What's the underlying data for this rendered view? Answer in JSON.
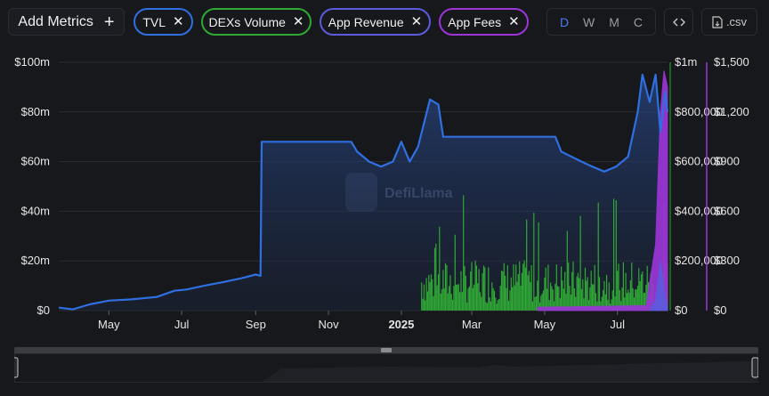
{
  "toolbar": {
    "add_metrics_label": "Add Metrics",
    "add_icon": "plus-icon",
    "pills": [
      {
        "label": "TVL",
        "color": "#2f6fe0"
      },
      {
        "label": "DEXs Volume",
        "color": "#2fa836"
      },
      {
        "label": "App Revenue",
        "color": "#5b5bdc"
      },
      {
        "label": "App Fees",
        "color": "#9b35d6"
      }
    ],
    "periods": [
      "D",
      "W",
      "M",
      "C"
    ],
    "active_period": "D",
    "embed_icon": "code-icon",
    "csv_label": ".csv",
    "csv_icon": "file-icon"
  },
  "watermark": "DefiLlama",
  "chart_data": {
    "type": "area",
    "x_ticks": [
      "May",
      "Jul",
      "Sep",
      "Nov",
      "2025",
      "Mar",
      "May",
      "Jul"
    ],
    "axes": {
      "left": {
        "ticks": [
          "$0",
          "$20m",
          "$40m",
          "$60m",
          "$80m",
          "$100m"
        ],
        "max": 100000000,
        "series": "TVL"
      },
      "right1": {
        "ticks": [
          "$0",
          "$200,000",
          "$400,000",
          "$600,000",
          "$800,000",
          "$1m"
        ],
        "max": 1000000,
        "series": "DEXs Volume"
      },
      "right2": {
        "ticks": [
          "$0",
          "$300",
          "$600",
          "$900",
          "$1,200",
          "$1,500"
        ],
        "max": 1500,
        "series": "App Fees"
      }
    },
    "series": [
      {
        "name": "TVL",
        "type": "area",
        "color": "#2f6fe0",
        "unit": "USD",
        "points": [
          [
            "2024-03-20",
            1200000.0
          ],
          [
            "2024-04-01",
            500000.0
          ],
          [
            "2024-04-15",
            2500000.0
          ],
          [
            "2024-05-01",
            4000000.0
          ],
          [
            "2024-05-20",
            4500000.0
          ],
          [
            "2024-06-10",
            5500000.0
          ],
          [
            "2024-06-25",
            8000000.0
          ],
          [
            "2024-07-05",
            8500000.0
          ],
          [
            "2024-07-20",
            10000000.0
          ],
          [
            "2024-08-05",
            11500000.0
          ],
          [
            "2024-08-20",
            13000000.0
          ],
          [
            "2024-09-01",
            14500000.0
          ],
          [
            "2024-09-05",
            14000000.0
          ],
          [
            "2024-09-06",
            68000000.0
          ],
          [
            "2024-11-20",
            68000000.0
          ],
          [
            "2024-11-25",
            64000000.0
          ],
          [
            "2024-12-05",
            60000000.0
          ],
          [
            "2024-12-15",
            58000000.0
          ],
          [
            "2024-12-25",
            60000000.0
          ],
          [
            "2025-01-01",
            68000000.0
          ],
          [
            "2025-01-08",
            60000000.0
          ],
          [
            "2025-01-15",
            66000000.0
          ],
          [
            "2025-01-25",
            85000000.0
          ],
          [
            "2025-02-01",
            83000000.0
          ],
          [
            "2025-02-05",
            70000000.0
          ],
          [
            "2025-04-20",
            70000000.0
          ],
          [
            "2025-05-10",
            70000000.0
          ],
          [
            "2025-05-15",
            64000000.0
          ],
          [
            "2025-06-01",
            60000000.0
          ],
          [
            "2025-06-10",
            58000000.0
          ],
          [
            "2025-06-20",
            56000000.0
          ],
          [
            "2025-06-30",
            58000000.0
          ],
          [
            "2025-07-10",
            62000000.0
          ],
          [
            "2025-07-18",
            80000000.0
          ],
          [
            "2025-07-22",
            95000000.0
          ],
          [
            "2025-07-28",
            84000000.0
          ],
          [
            "2025-08-02",
            95000000.0
          ],
          [
            "2025-08-06",
            72000000.0
          ],
          [
            "2025-08-10",
            88000000.0
          ],
          [
            "2025-08-12",
            80000000.0
          ]
        ]
      },
      {
        "name": "DEXs Volume",
        "type": "bar",
        "color": "#2fa836",
        "unit": "USD",
        "start": "2025-01-18",
        "end": "2025-08-12",
        "typical": 110000,
        "max": 590000
      },
      {
        "name": "App Revenue",
        "type": "area",
        "color": "#5b5bdc",
        "unit": "USD",
        "points": [
          [
            "2025-07-28",
            0
          ],
          [
            "2025-08-02",
            60
          ],
          [
            "2025-08-06",
            300
          ],
          [
            "2025-08-10",
            80
          ],
          [
            "2025-08-12",
            20
          ]
        ]
      },
      {
        "name": "App Fees",
        "type": "area",
        "color": "#9b35d6",
        "unit": "USD",
        "points": [
          [
            "2025-04-25",
            20
          ],
          [
            "2025-07-25",
            30
          ],
          [
            "2025-08-02",
            400
          ],
          [
            "2025-08-06",
            1200
          ],
          [
            "2025-08-09",
            1450
          ],
          [
            "2025-08-12",
            1350
          ]
        ]
      }
    ],
    "range": [
      "2024-03-20",
      "2025-08-12"
    ]
  }
}
